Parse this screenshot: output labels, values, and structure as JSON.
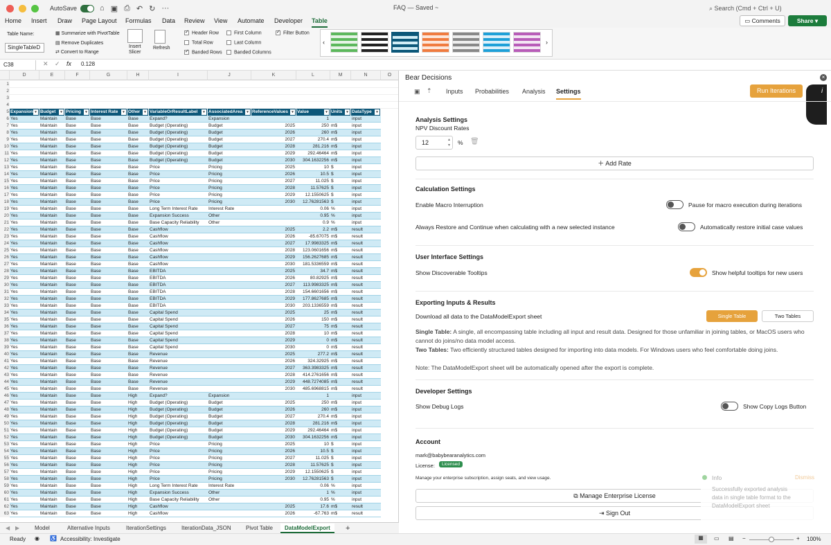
{
  "titlebar": {
    "autosave": "AutoSave",
    "doc_title": "FAQ — Saved ~",
    "search": "Search (Cmd + Ctrl + U)"
  },
  "ribbon_tabs": [
    "Home",
    "Insert",
    "Draw",
    "Page Layout",
    "Formulas",
    "Data",
    "Review",
    "View",
    "Automate",
    "Developer",
    "Table"
  ],
  "ribbon": {
    "comments": "Comments",
    "share": "Share",
    "table_name_label": "Table Name:",
    "table_name": "SingleTableD",
    "summarize": "Summarize with PivotTable",
    "remove_dup": "Remove Duplicates",
    "convert": "Convert to Range",
    "insert_slicer_1": "Insert",
    "insert_slicer_2": "Slicer",
    "refresh": "Refresh",
    "header_row": "Header Row",
    "total_row": "Total Row",
    "banded_rows": "Banded Rows",
    "first_column": "First Column",
    "last_column": "Last Column",
    "banded_columns": "Banded Columns",
    "filter_button": "Filter Button"
  },
  "formula": {
    "cell": "C38",
    "value": "0.128"
  },
  "columns": [
    "D",
    "E",
    "F",
    "G",
    "H",
    "I",
    "J",
    "K",
    "L",
    "M",
    "N",
    "O"
  ],
  "table_headers": [
    "Expansion",
    "Budget",
    "Pricing",
    "Interest Rate",
    "Other",
    "VariableOrResultLabel",
    "AssociatedArea",
    "ReferenceValues",
    "Value",
    "Units",
    "DataType"
  ],
  "rows": [
    [
      "Yes",
      "Maintain",
      "Base",
      "Base",
      "Base",
      "Expand?",
      "Expansion",
      "",
      "1",
      "",
      "input"
    ],
    [
      "Yes",
      "Maintain",
      "Base",
      "Base",
      "Base",
      "Budget (Operating)",
      "Budget",
      "2025",
      "250",
      "m$",
      "input"
    ],
    [
      "Yes",
      "Maintain",
      "Base",
      "Base",
      "Base",
      "Budget (Operating)",
      "Budget",
      "2026",
      "260",
      "m$",
      "input"
    ],
    [
      "Yes",
      "Maintain",
      "Base",
      "Base",
      "Base",
      "Budget (Operating)",
      "Budget",
      "2027",
      "270.4",
      "m$",
      "input"
    ],
    [
      "Yes",
      "Maintain",
      "Base",
      "Base",
      "Base",
      "Budget (Operating)",
      "Budget",
      "2028",
      "281.216",
      "m$",
      "input"
    ],
    [
      "Yes",
      "Maintain",
      "Base",
      "Base",
      "Base",
      "Budget (Operating)",
      "Budget",
      "2029",
      "292.46464",
      "m$",
      "input"
    ],
    [
      "Yes",
      "Maintain",
      "Base",
      "Base",
      "Base",
      "Budget (Operating)",
      "Budget",
      "2030",
      "304.1632256",
      "m$",
      "input"
    ],
    [
      "Yes",
      "Maintain",
      "Base",
      "Base",
      "Base",
      "Price",
      "Pricing",
      "2025",
      "10",
      "$",
      "input"
    ],
    [
      "Yes",
      "Maintain",
      "Base",
      "Base",
      "Base",
      "Price",
      "Pricing",
      "2026",
      "10.5",
      "$",
      "input"
    ],
    [
      "Yes",
      "Maintain",
      "Base",
      "Base",
      "Base",
      "Price",
      "Pricing",
      "2027",
      "11.025",
      "$",
      "input"
    ],
    [
      "Yes",
      "Maintain",
      "Base",
      "Base",
      "Base",
      "Price",
      "Pricing",
      "2028",
      "11.57625",
      "$",
      "input"
    ],
    [
      "Yes",
      "Maintain",
      "Base",
      "Base",
      "Base",
      "Price",
      "Pricing",
      "2029",
      "12.1550625",
      "$",
      "input"
    ],
    [
      "Yes",
      "Maintain",
      "Base",
      "Base",
      "Base",
      "Price",
      "Pricing",
      "2030",
      "12.76281563",
      "$",
      "input"
    ],
    [
      "Yes",
      "Maintain",
      "Base",
      "Base",
      "Base",
      "Long Term Interest Rate",
      "Interest Rate",
      "",
      "0.06",
      "%",
      "input"
    ],
    [
      "Yes",
      "Maintain",
      "Base",
      "Base",
      "Base",
      "Expansion Success",
      "Other",
      "",
      "0.95",
      "%",
      "input"
    ],
    [
      "Yes",
      "Maintain",
      "Base",
      "Base",
      "Base",
      "Base Capacity Reliability",
      "Other",
      "",
      "0.9",
      "%",
      "input"
    ],
    [
      "Yes",
      "Maintain",
      "Base",
      "Base",
      "Base",
      "Cashflow",
      "",
      "2025",
      "2.2",
      "m$",
      "result"
    ],
    [
      "Yes",
      "Maintain",
      "Base",
      "Base",
      "Base",
      "Cashflow",
      "",
      "2026",
      "-85.67075",
      "m$",
      "result"
    ],
    [
      "Yes",
      "Maintain",
      "Base",
      "Base",
      "Base",
      "Cashflow",
      "",
      "2027",
      "17.9983325",
      "m$",
      "result"
    ],
    [
      "Yes",
      "Maintain",
      "Base",
      "Base",
      "Base",
      "Cashflow",
      "",
      "2028",
      "123.0601656",
      "m$",
      "result"
    ],
    [
      "Yes",
      "Maintain",
      "Base",
      "Base",
      "Base",
      "Cashflow",
      "",
      "2029",
      "156.2627685",
      "m$",
      "result"
    ],
    [
      "Yes",
      "Maintain",
      "Base",
      "Base",
      "Base",
      "Cashflow",
      "",
      "2030",
      "181.5336559",
      "m$",
      "result"
    ],
    [
      "Yes",
      "Maintain",
      "Base",
      "Base",
      "Base",
      "EBITDA",
      "",
      "2025",
      "34.7",
      "m$",
      "result"
    ],
    [
      "Yes",
      "Maintain",
      "Base",
      "Base",
      "Base",
      "EBITDA",
      "",
      "2026",
      "80.82925",
      "m$",
      "result"
    ],
    [
      "Yes",
      "Maintain",
      "Base",
      "Base",
      "Base",
      "EBITDA",
      "",
      "2027",
      "113.9983325",
      "m$",
      "result"
    ],
    [
      "Yes",
      "Maintain",
      "Base",
      "Base",
      "Base",
      "EBITDA",
      "",
      "2028",
      "154.6601656",
      "m$",
      "result"
    ],
    [
      "Yes",
      "Maintain",
      "Base",
      "Base",
      "Base",
      "EBITDA",
      "",
      "2029",
      "177.8627685",
      "m$",
      "result"
    ],
    [
      "Yes",
      "Maintain",
      "Base",
      "Base",
      "Base",
      "EBITDA",
      "",
      "2030",
      "203.1336559",
      "m$",
      "result"
    ],
    [
      "Yes",
      "Maintain",
      "Base",
      "Base",
      "Base",
      "Capital Spend",
      "",
      "2025",
      "25",
      "m$",
      "result"
    ],
    [
      "Yes",
      "Maintain",
      "Base",
      "Base",
      "Base",
      "Capital Spend",
      "",
      "2026",
      "150",
      "m$",
      "result"
    ],
    [
      "Yes",
      "Maintain",
      "Base",
      "Base",
      "Base",
      "Capital Spend",
      "",
      "2027",
      "75",
      "m$",
      "result"
    ],
    [
      "Yes",
      "Maintain",
      "Base",
      "Base",
      "Base",
      "Capital Spend",
      "",
      "2028",
      "10",
      "m$",
      "result"
    ],
    [
      "Yes",
      "Maintain",
      "Base",
      "Base",
      "Base",
      "Capital Spend",
      "",
      "2029",
      "0",
      "m$",
      "result"
    ],
    [
      "Yes",
      "Maintain",
      "Base",
      "Base",
      "Base",
      "Capital Spend",
      "",
      "2030",
      "0",
      "m$",
      "result"
    ],
    [
      "Yes",
      "Maintain",
      "Base",
      "Base",
      "Base",
      "Revenue",
      "",
      "2025",
      "277.2",
      "m$",
      "result"
    ],
    [
      "Yes",
      "Maintain",
      "Base",
      "Base",
      "Base",
      "Revenue",
      "",
      "2026",
      "324.32925",
      "m$",
      "result"
    ],
    [
      "Yes",
      "Maintain",
      "Base",
      "Base",
      "Base",
      "Revenue",
      "",
      "2027",
      "363.3983325",
      "m$",
      "result"
    ],
    [
      "Yes",
      "Maintain",
      "Base",
      "Base",
      "Base",
      "Revenue",
      "",
      "2028",
      "414.2761656",
      "m$",
      "result"
    ],
    [
      "Yes",
      "Maintain",
      "Base",
      "Base",
      "Base",
      "Revenue",
      "",
      "2029",
      "448.7274085",
      "m$",
      "result"
    ],
    [
      "Yes",
      "Maintain",
      "Base",
      "Base",
      "Base",
      "Revenue",
      "",
      "2030",
      "485.6968815",
      "m$",
      "result"
    ],
    [
      "Yes",
      "Maintain",
      "Base",
      "Base",
      "High",
      "Expand?",
      "Expansion",
      "",
      "1",
      "",
      "input"
    ],
    [
      "Yes",
      "Maintain",
      "Base",
      "Base",
      "High",
      "Budget (Operating)",
      "Budget",
      "2025",
      "250",
      "m$",
      "input"
    ],
    [
      "Yes",
      "Maintain",
      "Base",
      "Base",
      "High",
      "Budget (Operating)",
      "Budget",
      "2026",
      "260",
      "m$",
      "input"
    ],
    [
      "Yes",
      "Maintain",
      "Base",
      "Base",
      "High",
      "Budget (Operating)",
      "Budget",
      "2027",
      "270.4",
      "m$",
      "input"
    ],
    [
      "Yes",
      "Maintain",
      "Base",
      "Base",
      "High",
      "Budget (Operating)",
      "Budget",
      "2028",
      "281.216",
      "m$",
      "input"
    ],
    [
      "Yes",
      "Maintain",
      "Base",
      "Base",
      "High",
      "Budget (Operating)",
      "Budget",
      "2029",
      "292.46464",
      "m$",
      "input"
    ],
    [
      "Yes",
      "Maintain",
      "Base",
      "Base",
      "High",
      "Budget (Operating)",
      "Budget",
      "2030",
      "304.1632256",
      "m$",
      "input"
    ],
    [
      "Yes",
      "Maintain",
      "Base",
      "Base",
      "High",
      "Price",
      "Pricing",
      "2025",
      "10",
      "$",
      "input"
    ],
    [
      "Yes",
      "Maintain",
      "Base",
      "Base",
      "High",
      "Price",
      "Pricing",
      "2026",
      "10.5",
      "$",
      "input"
    ],
    [
      "Yes",
      "Maintain",
      "Base",
      "Base",
      "High",
      "Price",
      "Pricing",
      "2027",
      "11.025",
      "$",
      "input"
    ],
    [
      "Yes",
      "Maintain",
      "Base",
      "Base",
      "High",
      "Price",
      "Pricing",
      "2028",
      "11.57625",
      "$",
      "input"
    ],
    [
      "Yes",
      "Maintain",
      "Base",
      "Base",
      "High",
      "Price",
      "Pricing",
      "2029",
      "12.1550625",
      "$",
      "input"
    ],
    [
      "Yes",
      "Maintain",
      "Base",
      "Base",
      "High",
      "Price",
      "Pricing",
      "2030",
      "12.76281563",
      "$",
      "input"
    ],
    [
      "Yes",
      "Maintain",
      "Base",
      "Base",
      "High",
      "Long Term Interest Rate",
      "Interest Rate",
      "",
      "0.06",
      "%",
      "input"
    ],
    [
      "Yes",
      "Maintain",
      "Base",
      "Base",
      "High",
      "Expansion Success",
      "Other",
      "",
      "1",
      "%",
      "input"
    ],
    [
      "Yes",
      "Maintain",
      "Base",
      "Base",
      "High",
      "Base Capacity Reliability",
      "Other",
      "",
      "0.95",
      "%",
      "input"
    ],
    [
      "Yes",
      "Maintain",
      "Base",
      "Base",
      "High",
      "Cashflow",
      "",
      "2025",
      "17.6",
      "m$",
      "result"
    ],
    [
      "Yes",
      "Maintain",
      "Base",
      "Base",
      "High",
      "Cashflow",
      "",
      "2026",
      "-67.763",
      "m$",
      "result"
    ]
  ],
  "sheet_tabs": [
    "Model",
    "Alternative Inputs",
    "IterationSettings",
    "IterationData_JSON",
    "Pivot Table",
    "DataModelExport"
  ],
  "status": {
    "ready": "Ready",
    "accessibility": "Accessibility: Investigate",
    "zoom": "100%"
  },
  "pane": {
    "title": "Bear Decisions",
    "tabs": [
      "Inputs",
      "Probabilities",
      "Analysis",
      "Settings"
    ],
    "run": "Run Iterations",
    "analysis_title": "Analysis Settings",
    "npv_label": "NPV Discount Rates",
    "npv_value": "12",
    "pct": "%",
    "add_rate": "Add Rate",
    "calc_title": "Calculation Settings",
    "macro_label": "Enable Macro Interruption",
    "macro_desc": "Pause for macro execution during iterations",
    "restore_label": "Always Restore and Continue when calculating with a new selected instance",
    "restore_desc": "Automatically restore initial case values",
    "ui_title": "User Interface Settings",
    "tooltips_label": "Show Discoverable Tooltips",
    "tooltips_desc": "Show helpful tooltips for new users",
    "export_title": "Exporting Inputs & Results",
    "export_label": "Download all data to the DataModelExport sheet",
    "single_table": "Single Table",
    "two_tables": "Two Tables",
    "single_bold": "Single Table:",
    "single_text": "A single, all encompassing table including all input and result data. Designed for those unfamiliar in joining tables, or MacOS users who cannot do joins/no data model access.",
    "two_bold": "Two Tables:",
    "two_text": "Two efficiently structured tables designed for importing into data models. For Windows users who feel comfortable doing joins.",
    "note": "Note: The DataModelExport sheet will be automatically opened after the export is complete.",
    "dev_title": "Developer Settings",
    "debug_label": "Show Debug Logs",
    "debug_desc": "Show Copy Logs Button",
    "account_title": "Account",
    "email": "mark@babybearanalytics.com",
    "license_label": "License:",
    "license_badge": "Licensed",
    "manage_text": "Manage your enterprise subscription, assign seats, and view usage.",
    "manage_btn": "Manage Enterprise License",
    "signout": "Sign Out",
    "info_title": "Info",
    "dismiss": "Dismiss",
    "info_text": "Successfully exported analysis data in single table format to the DataModelExport sheet"
  }
}
